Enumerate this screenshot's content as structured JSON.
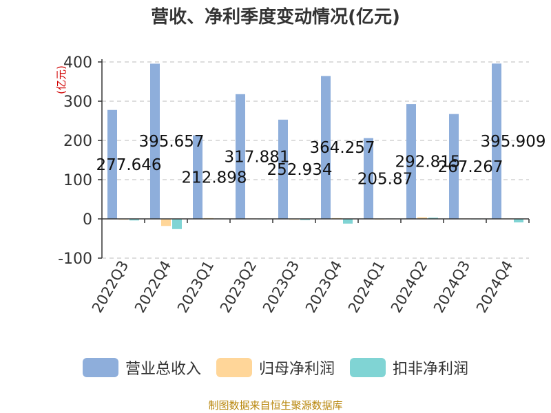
{
  "chart_data": {
    "type": "bar",
    "title": "营收、净利季度变动情况(亿元)",
    "ylabel": "(亿元)",
    "categories": [
      "2022Q3",
      "2022Q4",
      "2023Q1",
      "2023Q2",
      "2023Q3",
      "2023Q4",
      "2024Q1",
      "2024Q2",
      "2024Q3",
      "2024Q4"
    ],
    "ylim": [
      -100,
      400
    ],
    "yticks": [
      400,
      300,
      200,
      100,
      0,
      -100
    ],
    "grid": true,
    "legend_position": "bottom",
    "series": [
      {
        "name": "营业总收入",
        "color": "#8eaedb",
        "values": [
          277.646,
          395.657,
          212.898,
          317.881,
          252.934,
          364.257,
          205.87,
          292.815,
          267.267,
          395.909
        ],
        "labels": [
          "277.646",
          "395.657",
          "212.898",
          "317.881",
          "252.934",
          "364.257",
          "205.87",
          "292.815",
          "267.267",
          "395.909"
        ]
      },
      {
        "name": "归母净利润",
        "color": "#ffd699",
        "values": [
          -2,
          -18,
          2,
          1,
          -2,
          2,
          -1,
          4,
          1,
          1
        ]
      },
      {
        "name": "扣非净利润",
        "color": "#80d4d4",
        "values": [
          -4,
          -26,
          1,
          0.5,
          -3,
          -12,
          1,
          3,
          0.5,
          -9
        ]
      }
    ]
  },
  "source_note": "制图数据来自恒生聚源数据库"
}
